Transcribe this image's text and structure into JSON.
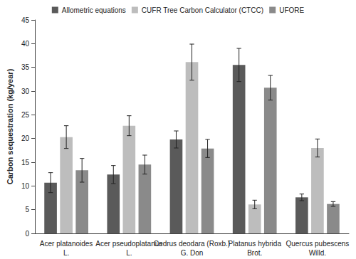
{
  "chart_data": {
    "type": "bar",
    "y_label": "Carbon sequestration (kg/year)",
    "categories": [
      "Acer platanoides\nL.",
      "Acer pseudoplatanus\nL.",
      "Cedrus deodara (Roxb.)\nG. Don",
      "Platanus hybrida\nBrot.",
      "Quercus pubescens\nWilld."
    ],
    "series": [
      {
        "name": "Allometric equations",
        "color": "#5a5a5a",
        "values": [
          10.7,
          12.4,
          19.8,
          35.5,
          7.6
        ],
        "errors": [
          2.1,
          1.9,
          1.8,
          3.5,
          0.7
        ]
      },
      {
        "name": "CUFR Tree Carbon Calculator (CTCC)",
        "color": "#bdbdbd",
        "values": [
          20.3,
          22.7,
          36.1,
          6.1,
          18.0
        ],
        "errors": [
          2.4,
          2.1,
          3.8,
          0.9,
          1.9
        ]
      },
      {
        "name": "UFORE",
        "color": "#8a8a8a",
        "values": [
          13.3,
          14.5,
          17.9,
          30.7,
          6.2
        ],
        "errors": [
          2.5,
          2.0,
          1.9,
          2.6,
          0.5
        ]
      }
    ],
    "ylim": [
      0,
      45
    ],
    "yticks": [
      0,
      5,
      10,
      15,
      20,
      25,
      30,
      35,
      40,
      45
    ],
    "grid": false,
    "legend": "top"
  }
}
